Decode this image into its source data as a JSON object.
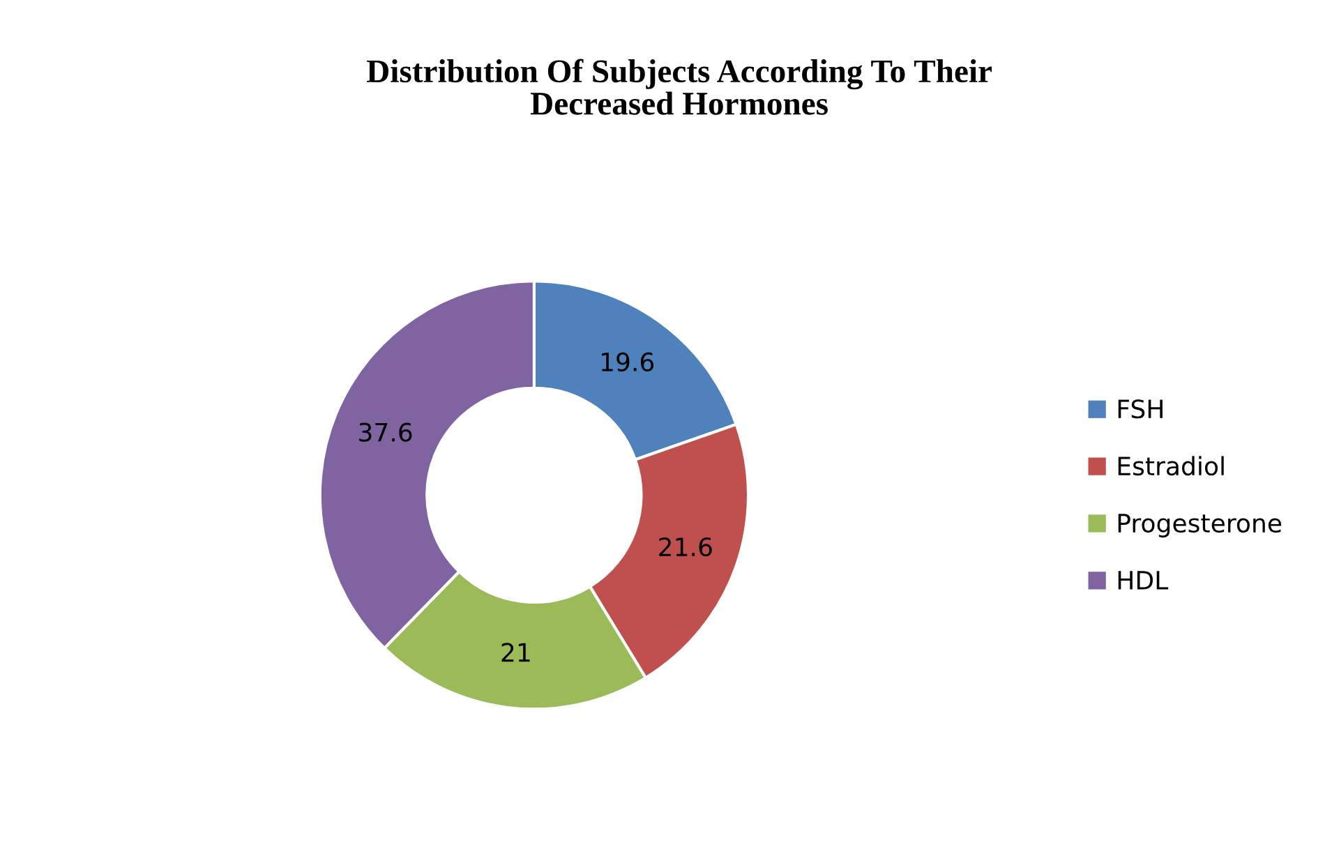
{
  "chart_data": {
    "type": "donut",
    "title": "Distribution Of Subjects According To Their\nDecreased Hormones",
    "categories": [
      "FSH",
      "Estradiol",
      "Progesterone",
      "HDL"
    ],
    "values": [
      19.6,
      21.6,
      21,
      37.6
    ],
    "colors": [
      "#4f81bd",
      "#c0504d",
      "#9bbb59",
      "#8064a2"
    ],
    "data_labels": true,
    "legend": "right"
  }
}
